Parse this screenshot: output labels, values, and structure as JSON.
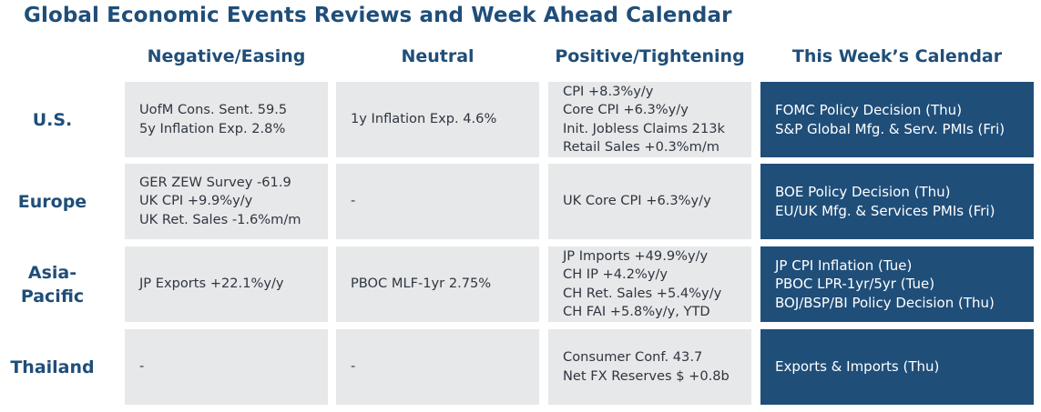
{
  "title": "Global Economic Events Reviews and Week Ahead Calendar",
  "columns": [
    "Negative/Easing",
    "Neutral",
    "Positive/Tightening",
    "This Week’s Calendar"
  ],
  "rows": [
    {
      "region": [
        "U.S."
      ],
      "negative": [
        "UofM Cons. Sent. 59.5",
        "5y Inflation Exp. 2.8%"
      ],
      "neutral": [
        "1y Inflation Exp. 4.6%"
      ],
      "positive": [
        "CPI +8.3%y/y",
        "Core CPI +6.3%y/y",
        "Init. Jobless Claims 213k",
        "Retail Sales +0.3%m/m"
      ],
      "calendar": [
        "FOMC Policy Decision (Thu)",
        "S&P Global Mfg. & Serv. PMIs (Fri)"
      ]
    },
    {
      "region": [
        "Europe"
      ],
      "negative": [
        "GER ZEW Survey -61.9",
        "UK CPI +9.9%y/y",
        "UK Ret. Sales -1.6%m/m"
      ],
      "neutral": [
        "-"
      ],
      "positive": [
        "UK Core CPI +6.3%y/y"
      ],
      "calendar": [
        "BOE Policy Decision (Thu)",
        "EU/UK Mfg. & Services PMIs (Fri)"
      ]
    },
    {
      "region": [
        "Asia-",
        "Pacific"
      ],
      "negative": [
        "JP Exports +22.1%y/y"
      ],
      "neutral": [
        "PBOC MLF-1yr 2.75%"
      ],
      "positive": [
        "JP Imports +49.9%y/y",
        "CH IP +4.2%y/y",
        "CH Ret. Sales +5.4%y/y",
        "CH FAI +5.8%y/y, YTD"
      ],
      "calendar": [
        "JP CPI Inflation (Tue)",
        "PBOC LPR-1yr/5yr (Tue)",
        "BOJ/BSP/BI Policy Decision (Thu)"
      ]
    },
    {
      "region": [
        "Thailand"
      ],
      "negative": [
        "-"
      ],
      "neutral": [
        "-"
      ],
      "positive": [
        "Consumer Conf. 43.7",
        "Net FX Reserves $ +0.8b"
      ],
      "calendar": [
        "Exports & Imports (Thu)"
      ]
    }
  ],
  "colors": {
    "heading": "#1f4e79",
    "cell": "#e7e8e9",
    "calendar": "#1f4e79",
    "calendar_text": "#ffffff"
  }
}
